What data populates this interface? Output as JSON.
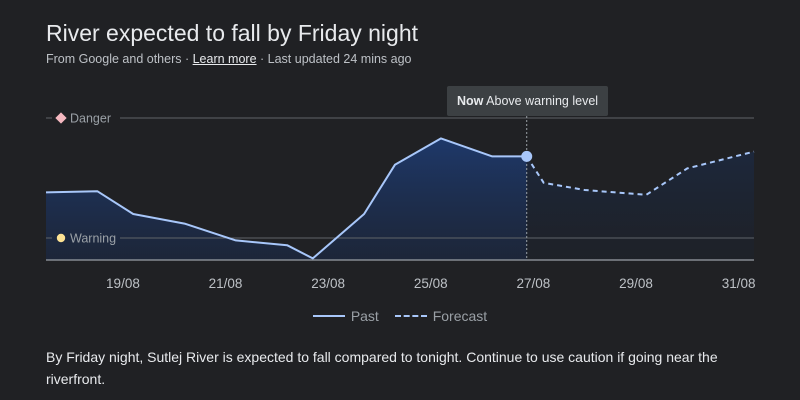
{
  "header": {
    "title": "River expected to fall by Friday night",
    "source_text": "From Google and others · ",
    "learn_more": "Learn more",
    "updated_text": " · Last updated 24 mins ago"
  },
  "tooltip": {
    "now_label": "Now",
    "text": " Above warning level"
  },
  "legend": {
    "past": "Past",
    "forecast": "Forecast"
  },
  "description": "By Friday night, Sutlej River is expected to fall compared to tonight. Continue to use caution if going near the riverfront.",
  "colors": {
    "background": "#202124",
    "line": "#a8c7fa",
    "danger_marker": "#f4b8c0",
    "warning_marker": "#fde293"
  },
  "chart_data": {
    "type": "area",
    "levels": [
      {
        "name": "Danger",
        "icon": "diamond-icon",
        "color": "#f4b8c0",
        "y": 1.0
      },
      {
        "name": "Warning",
        "icon": "circle-icon",
        "color": "#fde293",
        "y": 0.0
      }
    ],
    "x_ticks": [
      "19/08",
      "21/08",
      "23/08",
      "25/08",
      "27/08",
      "29/08",
      "31/08"
    ],
    "x_range": [
      17.5,
      31.3
    ],
    "ylim": [
      -0.2,
      1.0
    ],
    "now_x": 26.87,
    "series": [
      {
        "name": "Past",
        "style": "solid",
        "x": [
          17.5,
          18.5,
          19.2,
          20.2,
          21.2,
          22.2,
          22.7,
          23.7,
          24.3,
          25.2,
          26.2,
          26.87
        ],
        "y": [
          0.38,
          0.39,
          0.2,
          0.12,
          -0.02,
          -0.06,
          -0.17,
          0.2,
          0.61,
          0.83,
          0.68,
          0.68
        ]
      },
      {
        "name": "Forecast",
        "style": "dashed",
        "x": [
          26.87,
          27.2,
          28.0,
          29.2,
          30.0,
          31.3
        ],
        "y": [
          0.68,
          0.46,
          0.4,
          0.36,
          0.58,
          0.72
        ]
      }
    ]
  }
}
